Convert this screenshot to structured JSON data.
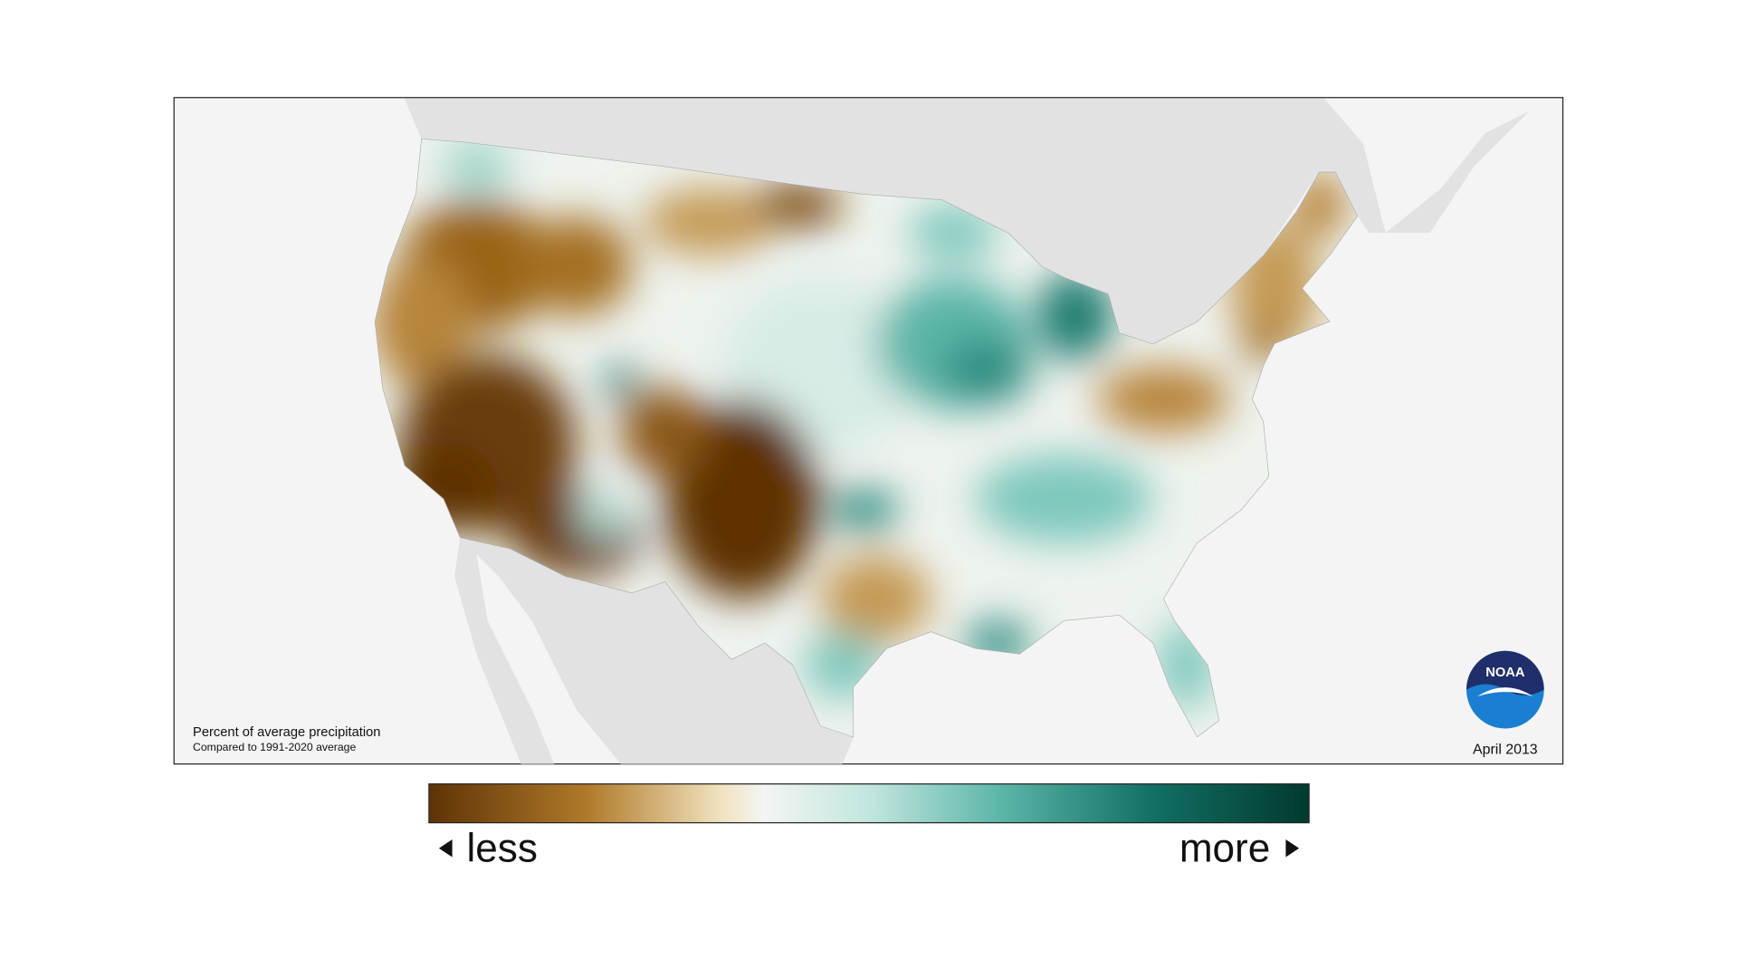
{
  "map": {
    "title": "Percent of average precipitation",
    "subtitle": "Compared to 1991-2020 average",
    "date": "April 2013",
    "logo": "NOAA"
  },
  "legend": {
    "low": "less",
    "high": "more"
  }
}
